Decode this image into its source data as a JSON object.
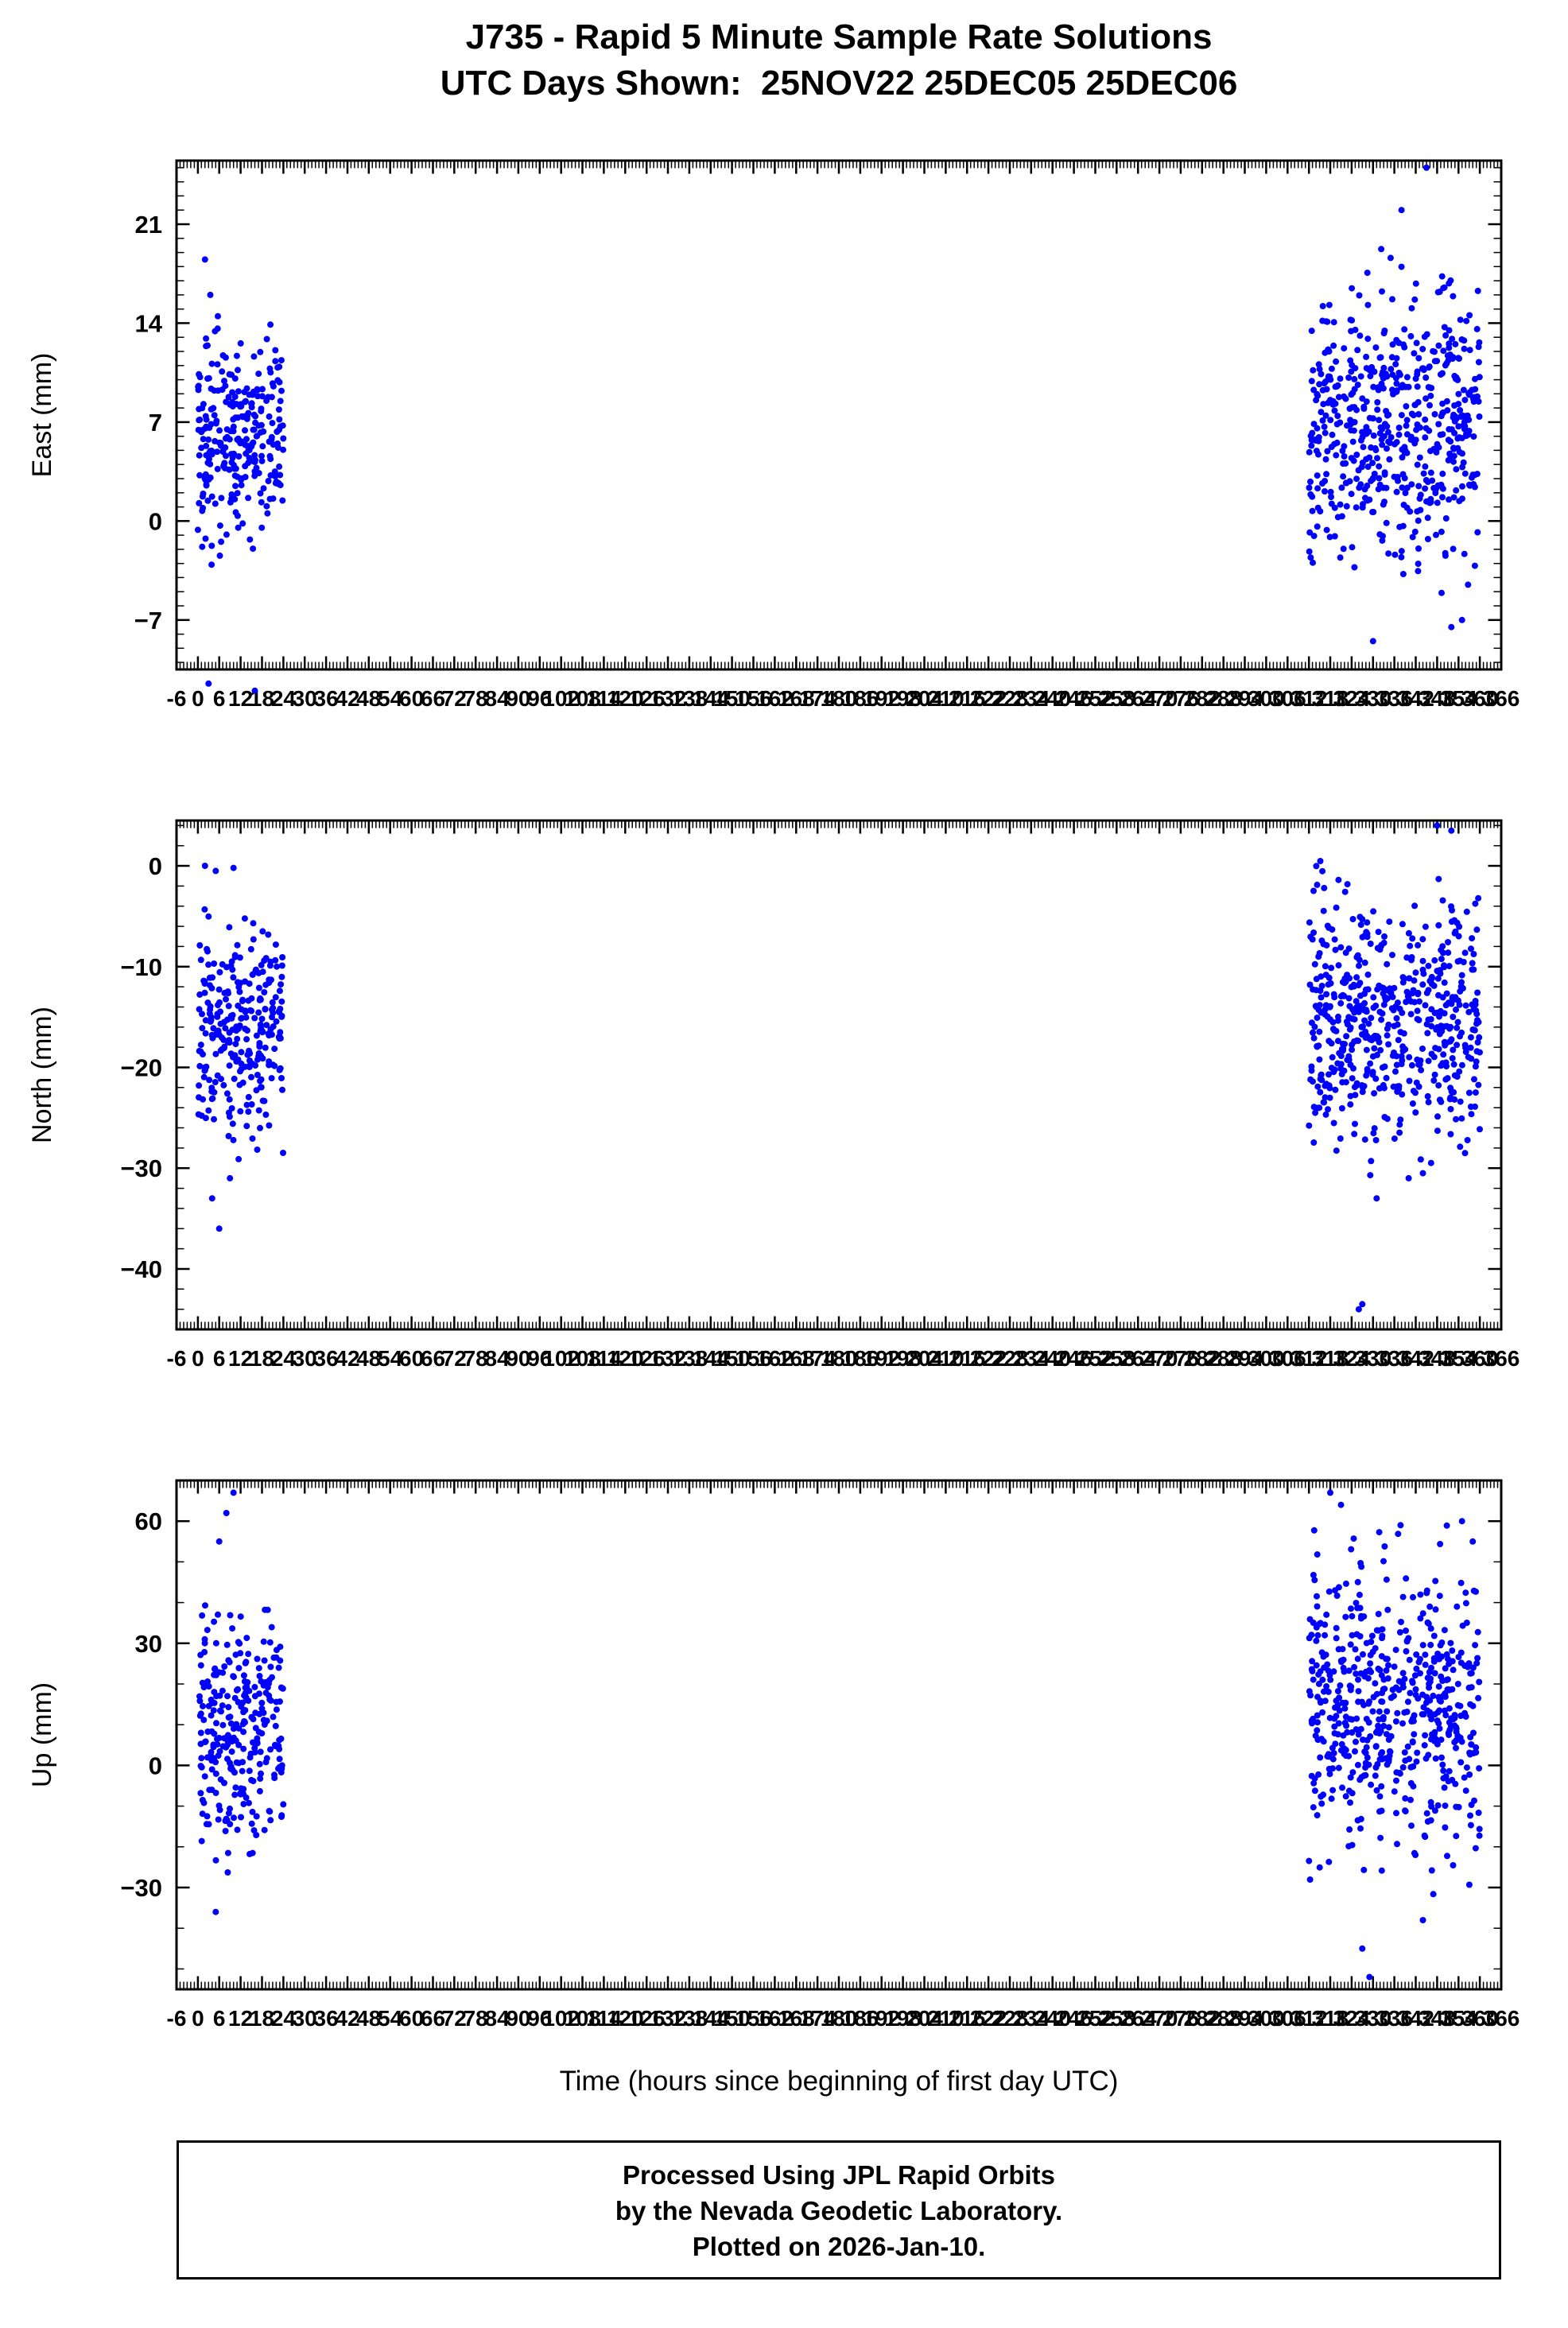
{
  "title": {
    "line1": "J735 - Rapid 5 Minute Sample Rate Solutions",
    "line2": "UTC Days Shown:  25NOV22 25DEC05 25DEC06"
  },
  "xlabel": "Time (hours since beginning of first day UTC)",
  "footer": {
    "line1": "Processed Using JPL Rapid Orbits",
    "line2": "by the Nevada Geodetic Laboratory.",
    "line3": "Plotted on 2026-Jan-10."
  },
  "colors": {
    "point": "#0000ff",
    "axis": "#000000",
    "background": "#ffffff"
  },
  "axes": {
    "xlim": [
      -6,
      366
    ],
    "x_minor_step": 1,
    "x_major_step": 6,
    "xticks": [
      -6,
      0,
      6,
      12,
      18,
      24,
      30,
      36,
      42,
      48,
      54,
      60,
      66,
      72,
      78,
      84,
      90,
      96,
      102,
      108,
      114,
      120,
      126,
      132,
      138,
      144,
      150,
      156,
      162,
      168,
      174,
      180,
      186,
      192,
      198,
      204,
      210,
      216,
      222,
      228,
      234,
      240,
      246,
      252,
      258,
      264,
      270,
      276,
      282,
      288,
      294,
      300,
      306,
      312,
      318,
      324,
      330,
      336,
      342,
      348,
      354,
      360,
      366
    ]
  },
  "chart_data": [
    {
      "type": "scatter",
      "ylabel": "East (mm)",
      "ylim": [
        -10.5,
        25.5
      ],
      "yticks": [
        21,
        14,
        7,
        0,
        -7
      ],
      "y_minor_step": 1,
      "clusters": [
        {
          "x_range": [
            0,
            24
          ],
          "n": 280,
          "y_mean": 6.0,
          "y_sd": 3.4,
          "seed": 11
        },
        {
          "x_range": [
            312,
            360
          ],
          "n": 560,
          "y_mean": 7.0,
          "y_sd": 4.6,
          "seed": 22
        }
      ],
      "outliers": [
        [
          2,
          18.5
        ],
        [
          3.5,
          16
        ],
        [
          3,
          -11.5
        ],
        [
          16,
          -12
        ],
        [
          345,
          25
        ],
        [
          338,
          22
        ],
        [
          330,
          -8.5
        ],
        [
          352,
          -7.5
        ],
        [
          355,
          -7
        ]
      ]
    },
    {
      "type": "scatter",
      "ylabel": "North (mm)",
      "ylim": [
        -46,
        4.5
      ],
      "yticks": [
        0,
        -10,
        -20,
        -30,
        -40
      ],
      "y_minor_step": 2,
      "clusters": [
        {
          "x_range": [
            0,
            24
          ],
          "n": 280,
          "y_mean": -17.0,
          "y_sd": 5.2,
          "seed": 33
        },
        {
          "x_range": [
            312,
            360
          ],
          "n": 560,
          "y_mean": -15.5,
          "y_sd": 6.0,
          "seed": 44
        }
      ],
      "outliers": [
        [
          4,
          -33
        ],
        [
          6,
          -36
        ],
        [
          9,
          -31
        ],
        [
          2,
          0
        ],
        [
          5,
          -0.5
        ],
        [
          10,
          -0.2
        ],
        [
          326,
          -44
        ],
        [
          327,
          -43.5
        ],
        [
          348,
          4
        ],
        [
          352,
          3.5
        ],
        [
          331,
          -33
        ],
        [
          340,
          -31
        ],
        [
          344,
          -30.5
        ]
      ]
    },
    {
      "type": "scatter",
      "ylabel": "Up (mm)",
      "ylim": [
        -55,
        70
      ],
      "yticks": [
        60,
        30,
        0,
        -30
      ],
      "y_minor_step": 10,
      "clusters": [
        {
          "x_range": [
            0,
            24
          ],
          "n": 280,
          "y_mean": 8.0,
          "y_sd": 14.0,
          "seed": 55
        },
        {
          "x_range": [
            312,
            360
          ],
          "n": 560,
          "y_mean": 14.0,
          "y_sd": 17.0,
          "seed": 66
        }
      ],
      "outliers": [
        [
          6,
          55
        ],
        [
          8,
          62
        ],
        [
          10,
          67
        ],
        [
          5,
          -36
        ],
        [
          318,
          67
        ],
        [
          321,
          64
        ],
        [
          344,
          -38
        ],
        [
          327,
          -45
        ],
        [
          329,
          -52
        ],
        [
          355,
          60
        ],
        [
          358,
          55
        ]
      ]
    }
  ]
}
